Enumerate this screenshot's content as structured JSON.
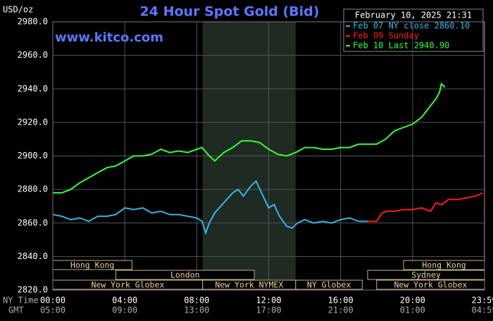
{
  "chart_data": {
    "type": "line",
    "title": "24 Hour Spot Gold (Bid)",
    "y_label": "USD/oz",
    "watermark": "www.kitco.com",
    "timestamp": "February 10, 2025 21:31",
    "x_label": "NY Time",
    "x2_label": "GMT",
    "xlim": [
      0,
      24
    ],
    "ylim": [
      2820,
      2980
    ],
    "grid": true,
    "xticks": [
      {
        "value": 0,
        "label": "00:00"
      },
      {
        "value": 4,
        "label": "04:00"
      },
      {
        "value": 8,
        "label": "08:00"
      },
      {
        "value": 12,
        "label": "12:00"
      },
      {
        "value": 16,
        "label": "16:00"
      },
      {
        "value": 20,
        "label": "20:00"
      },
      {
        "value": 23.983,
        "label": "23:59"
      }
    ],
    "xticks_gmt": [
      "05:00",
      "09:00",
      "13:00",
      "17:00",
      "21:00",
      "01:00",
      "04:59"
    ],
    "yticks": [
      {
        "value": 2820,
        "label": "2820.0"
      },
      {
        "value": 2840,
        "label": "2840.0"
      },
      {
        "value": 2860,
        "label": "2860.0"
      },
      {
        "value": 2880,
        "label": "2880.0"
      },
      {
        "value": 2900,
        "label": "2900.0"
      },
      {
        "value": 2920,
        "label": "2920.0"
      },
      {
        "value": 2940,
        "label": "2940.0"
      },
      {
        "value": 2960,
        "label": "2960.0"
      },
      {
        "value": 2980,
        "label": "2980.0"
      }
    ],
    "shaded": [
      8.33,
      13.5
    ],
    "sessions": [
      {
        "label": "Hong Kong",
        "start": 0,
        "end": 4.4,
        "row": 0
      },
      {
        "label": "Hong Kong",
        "start": 19.5,
        "end": 24,
        "row": 0
      },
      {
        "label": "London",
        "start": 3.5,
        "end": 11.2,
        "row": 1
      },
      {
        "label": "Sydney",
        "start": 17.5,
        "end": 24,
        "row": 1
      },
      {
        "label": "New York Globex",
        "start": 0,
        "end": 8.33,
        "row": 2
      },
      {
        "label": "New York NYMEX",
        "start": 8.33,
        "end": 13.5,
        "row": 2
      },
      {
        "label": "NY Globex",
        "start": 13.5,
        "end": 17.2,
        "row": 2
      },
      {
        "label": "New York Globex",
        "start": 18,
        "end": 24,
        "row": 2
      }
    ],
    "series": [
      {
        "name": "Feb 07 NY close 2860.10",
        "color": "#33b5e5",
        "x": [
          0,
          0.5,
          1,
          1.5,
          2,
          2.5,
          3,
          3.5,
          4,
          4.5,
          5,
          5.5,
          6,
          6.5,
          7,
          7.5,
          8,
          8.3,
          8.5,
          8.7,
          9,
          9.5,
          10,
          10.3,
          10.6,
          11,
          11.3,
          11.6,
          12,
          12.3,
          12.6,
          13,
          13.3,
          13.6,
          14,
          14.5,
          15,
          15.5,
          16,
          16.5,
          17,
          17.5
        ],
        "values": [
          2865,
          2864,
          2862,
          2863,
          2861,
          2864,
          2864,
          2865,
          2869,
          2868,
          2869,
          2866,
          2867,
          2865,
          2865,
          2864,
          2863,
          2861,
          2854,
          2860,
          2866,
          2872,
          2878,
          2880,
          2876,
          2882,
          2885,
          2878,
          2869,
          2871,
          2864,
          2858,
          2857,
          2860,
          2862,
          2860,
          2861,
          2860,
          2862,
          2863,
          2861,
          2861
        ]
      },
      {
        "name": "Feb 09 Sunday",
        "color": "#ff1a1a",
        "x": [
          17.5,
          18,
          18.3,
          18.6,
          19,
          19.5,
          20,
          20.5,
          21,
          21.3,
          21.6,
          22,
          22.5,
          23,
          23.5,
          23.9
        ],
        "values": [
          2861,
          2861,
          2866,
          2867,
          2867,
          2868,
          2868,
          2869,
          2867,
          2872,
          2871,
          2874,
          2874,
          2875,
          2876,
          2878
        ]
      },
      {
        "name": "Feb 10 Last 2940.90",
        "color": "#33ff33",
        "x": [
          0,
          0.5,
          1,
          1.5,
          2,
          2.5,
          3,
          3.5,
          4,
          4.5,
          5,
          5.5,
          6,
          6.5,
          7,
          7.5,
          8,
          8.3,
          8.7,
          9,
          9.5,
          10,
          10.5,
          11,
          11.5,
          12,
          12.5,
          13,
          13.5,
          14,
          14.5,
          15,
          15.5,
          16,
          16.5,
          17,
          17.5,
          18,
          18.5,
          19,
          19.5,
          20,
          20.5,
          21,
          21.3,
          21.5,
          21.6,
          21.8
        ],
        "values": [
          2878,
          2878,
          2880,
          2884,
          2887,
          2890,
          2893,
          2894,
          2897,
          2900,
          2900,
          2901,
          2904,
          2902,
          2903,
          2902,
          2904,
          2905,
          2900,
          2897,
          2902,
          2905,
          2909,
          2909,
          2908,
          2904,
          2901,
          2900,
          2902,
          2905,
          2905,
          2904,
          2904,
          2905,
          2905,
          2907,
          2907,
          2907,
          2910,
          2915,
          2917,
          2919,
          2923,
          2930,
          2934,
          2938,
          2943,
          2941
        ]
      }
    ]
  }
}
